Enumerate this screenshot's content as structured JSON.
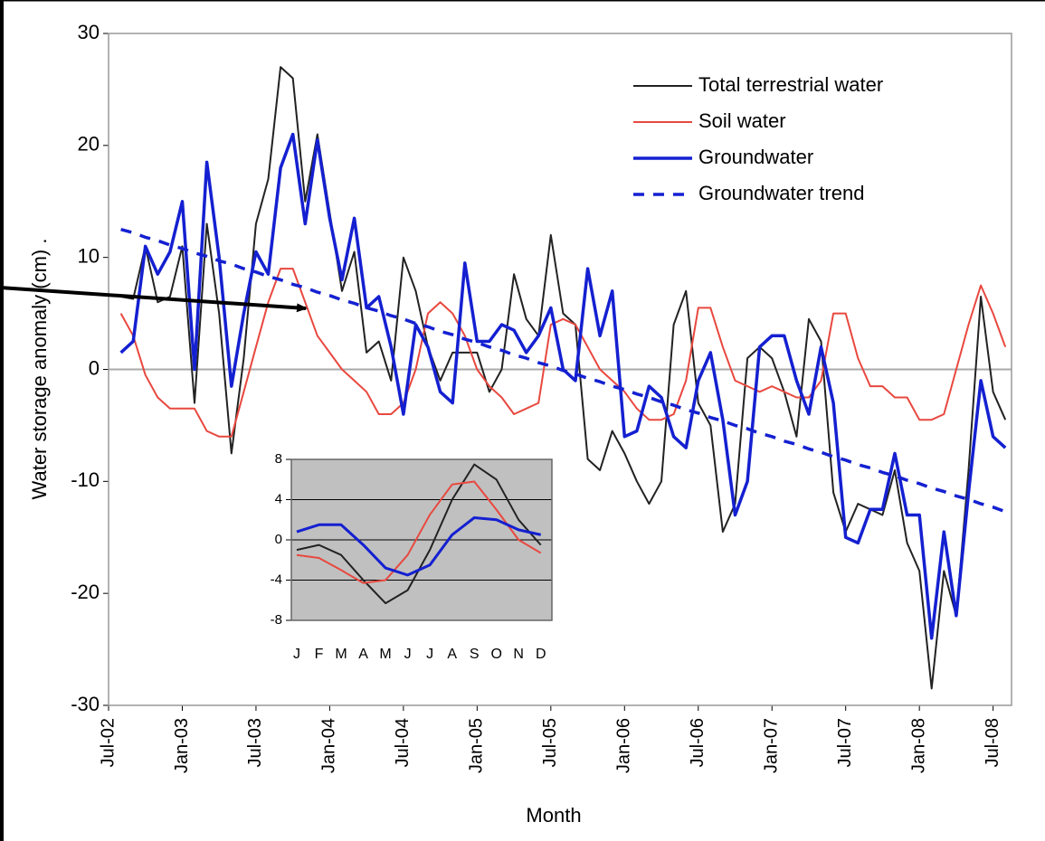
{
  "chart_data": [
    {
      "type": "line",
      "y_label": "Water storage anomaly (cm) .",
      "x_label": "Month",
      "categories": [
        "Jul-02",
        null,
        null,
        null,
        null,
        null,
        "Jan-03",
        null,
        null,
        null,
        null,
        null,
        "Jul-03",
        null,
        null,
        null,
        null,
        null,
        "Jan-04",
        null,
        null,
        null,
        null,
        null,
        "Jul-04",
        null,
        null,
        null,
        null,
        null,
        "Jan-05",
        null,
        null,
        null,
        null,
        null,
        "Jul-05",
        null,
        null,
        null,
        null,
        null,
        "Jan-06",
        null,
        null,
        null,
        null,
        null,
        "Jul-06",
        null,
        null,
        null,
        null,
        null,
        "Jan-07",
        null,
        null,
        null,
        null,
        null,
        "Jul-07",
        null,
        null,
        null,
        null,
        null,
        "Jan-08",
        null,
        null,
        null,
        null,
        null,
        "Jul-08",
        null
      ],
      "ylim": [
        -30,
        30
      ],
      "yticks": [
        -30,
        -20,
        -10,
        0,
        10,
        20,
        30
      ],
      "zero_line": true,
      "legend": "top-right",
      "series": [
        {
          "name": "Total terrestrial water",
          "color": "#222222",
          "width": 2,
          "values": [
            null,
            6.5,
            6.3,
            11,
            6,
            6.5,
            11,
            -3,
            13,
            5,
            -7.5,
            1,
            13,
            17,
            27,
            26,
            15,
            21,
            14,
            7,
            10.5,
            1.5,
            2.5,
            -1,
            10,
            7,
            2,
            -1,
            1.5,
            1.5,
            1.5,
            -2,
            0,
            8.5,
            4.5,
            3,
            12,
            5,
            4,
            -8,
            -9,
            -5.5,
            -7.5,
            -10,
            -12,
            -10,
            4,
            7,
            -3,
            -5,
            -14.5,
            -12,
            1,
            2,
            1,
            -2,
            -6,
            4.5,
            2.5,
            -11,
            -14.5,
            -12,
            -12.5,
            -13,
            -9,
            -15.5,
            -18,
            -28.5,
            -18,
            -22,
            -9,
            6.5,
            -2,
            -4.5
          ]
        },
        {
          "name": "Soil water",
          "color": "#e8483f",
          "width": 2,
          "values": [
            null,
            5,
            3,
            -0.5,
            -2.5,
            -3.5,
            -3.5,
            -3.5,
            -5.5,
            -6,
            -6,
            -2,
            2,
            6,
            9,
            9,
            6,
            3,
            1.5,
            0,
            -1,
            -2,
            -4,
            -4,
            -3,
            0,
            5,
            6,
            5,
            3,
            0,
            -1.5,
            -2.5,
            -4,
            -3.5,
            -3,
            4,
            4.5,
            4,
            2,
            0,
            -1,
            -2,
            -3.5,
            -4.5,
            -4.5,
            -4,
            -1,
            5.5,
            5.5,
            2,
            -1,
            -1.5,
            -2,
            -1.5,
            -2,
            -2.5,
            -2.5,
            -1,
            5,
            5,
            1,
            -1.5,
            -1.5,
            -2.5,
            -2.5,
            -4.5,
            -4.5,
            -4,
            0,
            4,
            7.5,
            5,
            2
          ]
        },
        {
          "name": "Groundwater",
          "color": "#1420d0",
          "width": 3.5,
          "values": [
            null,
            1.5,
            2.5,
            11,
            8.5,
            10.5,
            15,
            0,
            18.5,
            10,
            -1.5,
            5,
            10.5,
            8.5,
            18,
            21,
            13,
            20.5,
            13.5,
            8,
            13.5,
            5.5,
            6.5,
            2,
            -4,
            4,
            2,
            -2,
            -3,
            9.5,
            2.5,
            2.5,
            4,
            3.5,
            1.5,
            3,
            5.5,
            0,
            -1,
            9,
            3,
            7,
            -6,
            -5.5,
            -1.5,
            -2.5,
            -6,
            -7,
            -1,
            1.5,
            -4.5,
            -13,
            -10,
            2,
            3,
            3,
            -1,
            -4,
            2,
            -3,
            -15,
            -15.5,
            -12.5,
            -12.5,
            -7.5,
            -13,
            -13,
            -24,
            -14.5,
            -22,
            -11,
            -1,
            -6,
            -7
          ]
        },
        {
          "name": "Groundwater trend",
          "color": "#1420d0",
          "width": 3.5,
          "dash": true,
          "values": [
            null,
            12.5,
            12.2,
            11.8,
            11.5,
            11.1,
            10.8,
            10.4,
            10.1,
            9.7,
            9.4,
            9.0,
            8.7,
            8.3,
            8.0,
            7.6,
            7.3,
            6.9,
            6.6,
            6.2,
            5.9,
            5.5,
            5.2,
            4.8,
            4.5,
            4.1,
            3.8,
            3.4,
            3.1,
            2.7,
            2.4,
            2.0,
            1.7,
            1.3,
            1.0,
            0.6,
            0.3,
            -0.1,
            -0.4,
            -0.8,
            -1.1,
            -1.5,
            -1.8,
            -2.2,
            -2.5,
            -2.9,
            -3.2,
            -3.6,
            -3.9,
            -4.3,
            -4.6,
            -5.0,
            -5.3,
            -5.7,
            -6.0,
            -6.4,
            -6.7,
            -7.1,
            -7.4,
            -7.8,
            -8.1,
            -8.5,
            -8.8,
            -9.2,
            -9.5,
            -9.9,
            -10.2,
            -10.6,
            -10.9,
            -11.3,
            -11.6,
            -12.0,
            -12.3,
            -12.7
          ]
        }
      ]
    },
    {
      "type": "line",
      "categories": [
        "J",
        "F",
        "M",
        "A",
        "M",
        "J",
        "J",
        "A",
        "S",
        "O",
        "N",
        "D"
      ],
      "ylim": [
        -8,
        8
      ],
      "yticks": [
        -8,
        -4,
        0,
        4,
        8
      ],
      "grid": true,
      "series": [
        {
          "color": "#222222",
          "width": 2,
          "values": [
            -1,
            -0.5,
            -1.5,
            -4,
            -6.3,
            -5,
            -1,
            4,
            7.5,
            6,
            2,
            -0.5
          ]
        },
        {
          "color": "#e8483f",
          "width": 2,
          "values": [
            -1.5,
            -1.8,
            -3,
            -4.3,
            -4,
            -1.5,
            2.5,
            5.5,
            5.8,
            3,
            0,
            -1.3
          ]
        },
        {
          "color": "#1420d0",
          "width": 3,
          "values": [
            0.8,
            1.5,
            1.5,
            -0.5,
            -2.8,
            -3.5,
            -2.5,
            0.5,
            2.2,
            2,
            1,
            0.5
          ]
        }
      ]
    }
  ]
}
